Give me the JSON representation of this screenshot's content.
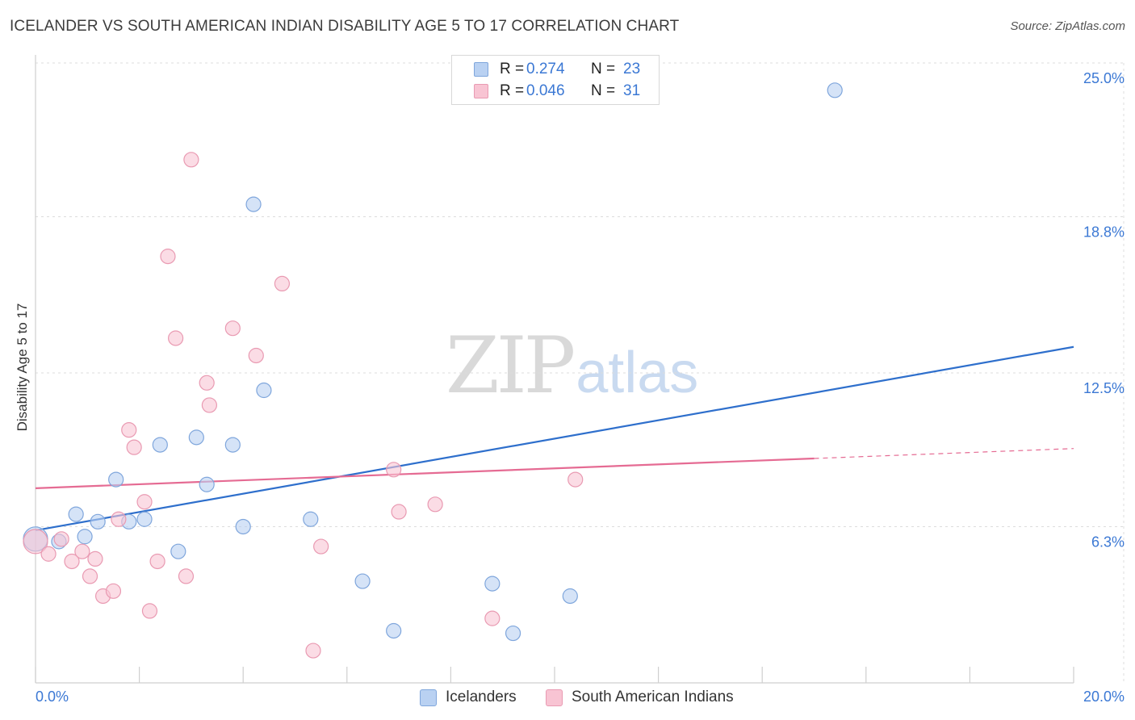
{
  "title": "ICELANDER VS SOUTH AMERICAN INDIAN DISABILITY AGE 5 TO 17 CORRELATION CHART",
  "source": "Source: ZipAtlas.com",
  "watermark": {
    "zip": "ZIP",
    "atlas": "atlas"
  },
  "legend_top": {
    "rows": [
      {
        "r_label": "R =",
        "r_value": "0.274",
        "n_label": "N =",
        "n_value": "23"
      },
      {
        "r_label": "R =",
        "r_value": "0.046",
        "n_label": "N =",
        "n_value": "31"
      }
    ]
  },
  "colors": {
    "blue_fill": "#b9d1f2",
    "blue_stroke": "#7fa6dc",
    "blue_line": "#2e6fcc",
    "pink_fill": "#f8c4d3",
    "pink_stroke": "#e99ab2",
    "pink_line": "#e56b93",
    "tick_label": "#3b78d4",
    "grid": "#dcdcdc"
  },
  "chart_data": {
    "type": "scatter",
    "title": "ICELANDER VS SOUTH AMERICAN INDIAN DISABILITY AGE 5 TO 17 CORRELATION CHART",
    "xlabel": "",
    "ylabel": "Disability Age 5 to 17",
    "xlim": [
      0,
      20
    ],
    "ylim": [
      0,
      25
    ],
    "x_tick_labels": [
      "0.0%",
      "20.0%"
    ],
    "y_ticks": [
      6.3,
      12.5,
      18.8,
      25.0
    ],
    "y_tick_labels": [
      "6.3%",
      "12.5%",
      "18.8%",
      "25.0%"
    ],
    "grid": true,
    "legend": "bottom-center",
    "series": [
      {
        "name": "Icelanders",
        "color": "#b9d1f2",
        "x": [
          0.0,
          0.45,
          0.78,
          0.95,
          1.2,
          1.55,
          1.8,
          2.1,
          2.4,
          2.75,
          3.1,
          3.3,
          3.8,
          4.0,
          4.2,
          4.4,
          5.3,
          6.3,
          6.9,
          8.8,
          9.2,
          10.3,
          15.4
        ],
        "y": [
          5.8,
          5.7,
          6.8,
          5.9,
          6.5,
          8.2,
          6.5,
          6.6,
          9.6,
          5.3,
          9.9,
          8.0,
          9.6,
          6.3,
          19.3,
          11.8,
          6.6,
          4.1,
          2.1,
          4.0,
          2.0,
          3.5,
          23.9
        ],
        "trend": {
          "x": [
            0.0,
            20.0
          ],
          "y": [
            6.15,
            13.55
          ],
          "style": "solid"
        }
      },
      {
        "name": "South American Indians",
        "color": "#f8c4d3",
        "x": [
          0.0,
          0.25,
          0.5,
          0.7,
          0.9,
          1.05,
          1.15,
          1.3,
          1.5,
          1.6,
          1.8,
          1.9,
          2.1,
          2.2,
          2.35,
          2.55,
          2.7,
          2.9,
          3.0,
          3.3,
          3.35,
          3.8,
          4.25,
          4.75,
          5.35,
          5.5,
          6.9,
          7.0,
          7.7,
          8.8,
          10.4
        ],
        "y": [
          5.7,
          5.2,
          5.8,
          4.9,
          5.3,
          4.3,
          5.0,
          3.5,
          3.7,
          6.6,
          10.2,
          9.5,
          7.3,
          2.9,
          4.9,
          17.2,
          13.9,
          4.3,
          21.1,
          12.1,
          11.2,
          14.3,
          13.2,
          16.1,
          1.3,
          5.5,
          8.6,
          6.9,
          7.2,
          2.6,
          8.2
        ],
        "trend": {
          "x": [
            0.0,
            15.0,
            20.0
          ],
          "y": [
            7.85,
            9.05,
            9.45
          ],
          "style": "solid-then-dashed"
        }
      }
    ]
  },
  "legend_bottom": [
    {
      "label": "Icelanders"
    },
    {
      "label": "South American Indians"
    }
  ]
}
